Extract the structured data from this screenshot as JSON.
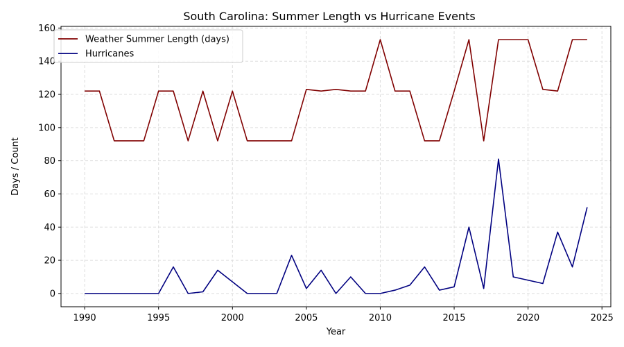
{
  "chart_data": {
    "type": "line",
    "title": "South Carolina: Summer Length vs Hurricane Events",
    "xlabel": "Year",
    "ylabel": "Days / Count",
    "xlim": [
      1988.4,
      2025.6
    ],
    "ylim": [
      -8,
      161
    ],
    "x_ticks": [
      1990,
      1995,
      2000,
      2005,
      2010,
      2015,
      2020,
      2025
    ],
    "y_ticks": [
      0,
      20,
      40,
      60,
      80,
      100,
      120,
      140,
      160
    ],
    "grid": true,
    "legend_position": "top-left",
    "x": [
      1990,
      1991,
      1992,
      1993,
      1994,
      1995,
      1996,
      1997,
      1998,
      1999,
      2000,
      2001,
      2002,
      2003,
      2004,
      2005,
      2006,
      2007,
      2008,
      2009,
      2010,
      2011,
      2012,
      2013,
      2014,
      2015,
      2016,
      2017,
      2018,
      2019,
      2020,
      2021,
      2022,
      2023,
      2024
    ],
    "series": [
      {
        "name": "Weather Summer Length (days)",
        "color": "#800000",
        "values": [
          122,
          122,
          92,
          92,
          92,
          122,
          122,
          92,
          122,
          92,
          122,
          92,
          92,
          92,
          92,
          123,
          122,
          123,
          122,
          122,
          153,
          122,
          122,
          92,
          92,
          122,
          153,
          92,
          153,
          153,
          153,
          123,
          122,
          153,
          153
        ]
      },
      {
        "name": "Hurricanes",
        "color": "#000080",
        "values": [
          0,
          0,
          0,
          0,
          0,
          0,
          16,
          0,
          1,
          14,
          7,
          0,
          0,
          0,
          23,
          3,
          14,
          0,
          10,
          0,
          0,
          2,
          5,
          16,
          2,
          4,
          40,
          3,
          81,
          10,
          8,
          6,
          37,
          16,
          52
        ]
      }
    ]
  }
}
